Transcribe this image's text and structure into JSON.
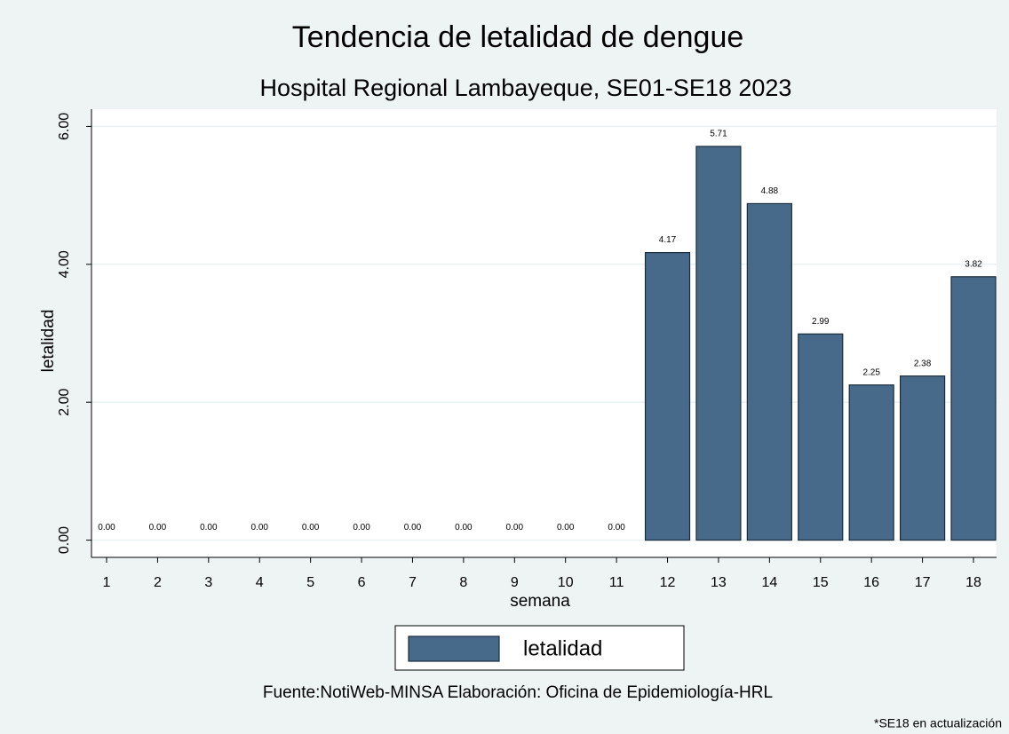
{
  "chart_data": {
    "type": "bar",
    "title": "Tendencia de letalidad de dengue",
    "subtitle": "Hospital Regional Lambayeque, SE01-SE18 2023",
    "x_label": "semana",
    "y_label": "letalidad",
    "categories": [
      "1",
      "2",
      "3",
      "4",
      "5",
      "6",
      "7",
      "8",
      "9",
      "10",
      "11",
      "12",
      "13",
      "14",
      "15",
      "16",
      "17",
      "18"
    ],
    "series": [
      {
        "name": "letalidad",
        "color": "#476a8a",
        "values": [
          0,
          0,
          0,
          0,
          0,
          0,
          0,
          0,
          0,
          0,
          0,
          4.17,
          5.71,
          4.88,
          2.99,
          2.25,
          2.38,
          3.82
        ],
        "value_labels": [
          "0.00",
          "0.00",
          "0.00",
          "0.00",
          "0.00",
          "0.00",
          "0.00",
          "0.00",
          "0.00",
          "0.00",
          "0.00",
          "4.17",
          "5.71",
          "4.88",
          "2.99",
          "2.25",
          "2.38",
          "3.82"
        ]
      }
    ],
    "ylim": [
      -0.25,
      6.25
    ],
    "yticks": [
      {
        "value": 0,
        "label": "0.00"
      },
      {
        "value": 2,
        "label": "2.00"
      },
      {
        "value": 4,
        "label": "4.00"
      },
      {
        "value": 6,
        "label": "6.00"
      }
    ],
    "grid": true,
    "legend": "bottom",
    "source": "Fuente:NotiWeb-MINSA Elaboración: Oficina de Epidemiología-HRL",
    "note": "*SE18 en actualización"
  }
}
